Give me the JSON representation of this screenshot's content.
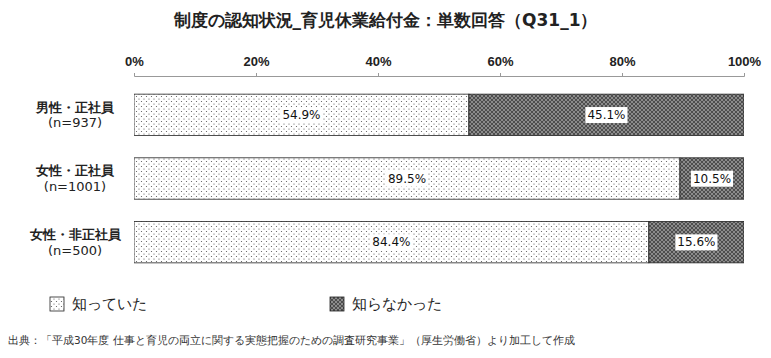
{
  "chart_data": {
    "type": "bar",
    "orientation": "horizontal",
    "stacked": true,
    "data_labels": true,
    "grid": false,
    "title": "制度の認知状況_育児休業給付金：単数回答（Q31_1）",
    "note": "出典：「平成30年度 仕事と育児の両立に関する実態把握のための調査研究事業」（厚生労働省）より加工して作成",
    "categories": [
      "男性・正社員\n(n=937)",
      "女性・正社員\n(n=1001)",
      "女性・非正社員\n(n=500)"
    ],
    "series": [
      {
        "name": "知っていた",
        "color": "#ffffff",
        "values": [
          54.9,
          89.5,
          84.4
        ],
        "value_labels": [
          "54.9%",
          "89.5%",
          "84.4%"
        ]
      },
      {
        "name": "知らなかった",
        "color": "#8c8c8c",
        "values": [
          45.1,
          10.5,
          15.6
        ],
        "value_labels": [
          "45.1%",
          "10.5%",
          "15.6%"
        ]
      }
    ],
    "xlim": [
      0,
      100
    ],
    "xticks": [
      {
        "value": 0,
        "label": "0%"
      },
      {
        "value": 20,
        "label": "20%"
      },
      {
        "value": 40,
        "label": "40%"
      },
      {
        "value": 60,
        "label": "60%"
      },
      {
        "value": 80,
        "label": "80%"
      },
      {
        "value": 100,
        "label": "100%"
      }
    ],
    "legend": "bottom"
  }
}
